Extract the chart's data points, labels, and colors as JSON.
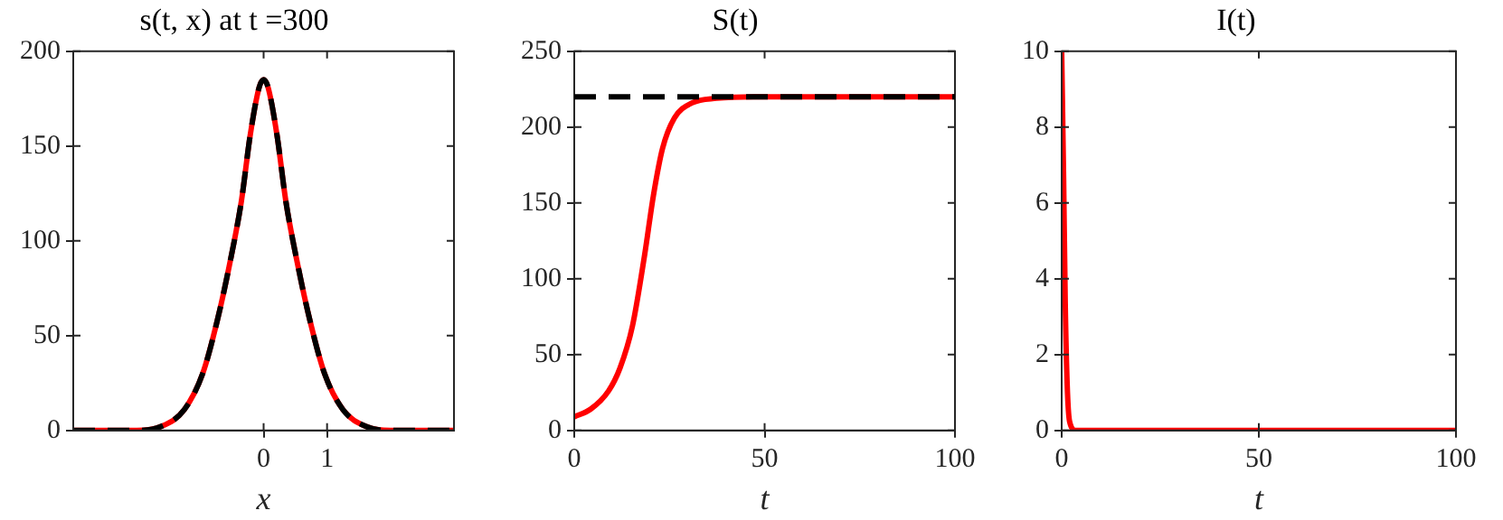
{
  "chart_data": [
    {
      "type": "line",
      "title": "s(t, x) at t =300",
      "xlabel": "x",
      "x": [
        -3,
        -2.5,
        -2,
        -1.62,
        -1.25,
        -0.96,
        -0.73,
        -0.54,
        -0.35,
        -0.21,
        -0.07,
        0,
        0.07,
        0.21,
        0.35,
        0.54,
        0.73,
        0.96,
        1.25,
        1.62,
        2,
        2.5,
        3
      ],
      "xlim": [
        -3,
        3
      ],
      "xticks": [
        0,
        1
      ],
      "ylim": [
        0,
        200
      ],
      "yticks": [
        0,
        50,
        100,
        150,
        200
      ],
      "series": [
        {
          "color": "#ff0000",
          "line_style": "solid",
          "values": [
            0,
            0,
            0,
            2,
            11,
            30,
            58,
            87,
            121,
            156,
            181,
            185,
            181,
            156,
            121,
            87,
            58,
            30,
            11,
            2,
            0,
            0,
            0
          ]
        },
        {
          "color": "#000000",
          "line_style": "dashed",
          "values": [
            0,
            0,
            0,
            2,
            11,
            30,
            58,
            87,
            121,
            156,
            181,
            185,
            181,
            156,
            121,
            87,
            58,
            30,
            11,
            2,
            0,
            0,
            0
          ]
        }
      ]
    },
    {
      "type": "line",
      "title": "S(t)",
      "xlabel": "t",
      "x": [
        0,
        4.3,
        9,
        12,
        15.3,
        18.5,
        20.8,
        23.2,
        26.3,
        31,
        37.4,
        47,
        60,
        100
      ],
      "xlim": [
        0,
        100
      ],
      "xticks": [
        0,
        50,
        100
      ],
      "ylim": [
        0,
        250
      ],
      "yticks": [
        0,
        50,
        100,
        150,
        200,
        250
      ],
      "series": [
        {
          "color": "#ff0000",
          "line_style": "solid",
          "values": [
            9,
            14,
            26,
            41,
            69,
            116,
            155,
            186,
            206,
            216,
            219,
            220,
            220,
            220
          ]
        }
      ],
      "ref_lines": [
        {
          "axis": "y",
          "value": 220,
          "color": "#000000",
          "line_style": "dashed"
        }
      ]
    },
    {
      "type": "line",
      "title": "I(t)",
      "xlabel": "t",
      "x": [
        0,
        0.5,
        0.9,
        1.4,
        2,
        3.6,
        100
      ],
      "xlim": [
        0,
        100
      ],
      "xticks": [
        0,
        50,
        100
      ],
      "ylim": [
        0,
        10
      ],
      "yticks": [
        0,
        2,
        4,
        6,
        8,
        10
      ],
      "series": [
        {
          "color": "#ff0000",
          "line_style": "solid",
          "values": [
            10,
            6.6,
            3.4,
            1.2,
            0.24,
            0,
            0
          ]
        }
      ]
    }
  ]
}
